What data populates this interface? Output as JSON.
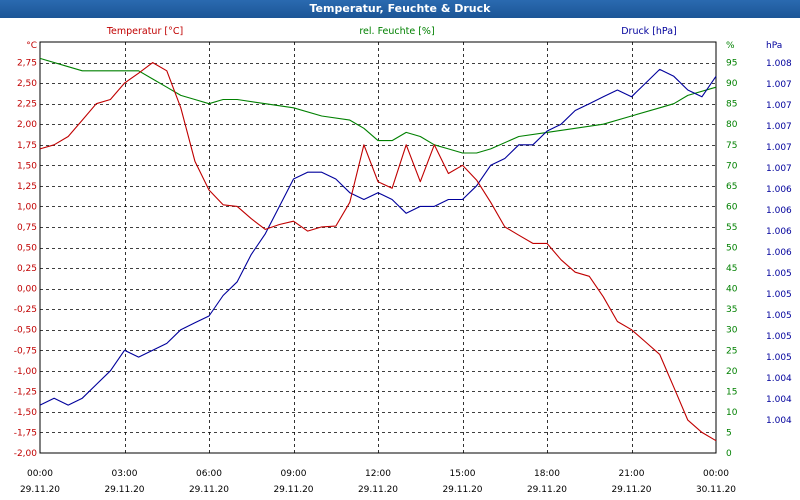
{
  "window": {
    "title": "Temperatur, Feuchte & Druck"
  },
  "chart_data": {
    "type": "line",
    "title": "Temperatur, Feuchte & Druck",
    "grid": true,
    "colors": {
      "temperature": "#c00000",
      "humidity": "#008000",
      "pressure": "#00009c"
    },
    "x_ticks": [
      {
        "time": "00:00",
        "date": "29.11.20"
      },
      {
        "time": "03:00",
        "date": "29.11.20"
      },
      {
        "time": "06:00",
        "date": "29.11.20"
      },
      {
        "time": "09:00",
        "date": "29.11.20"
      },
      {
        "time": "12:00",
        "date": "29.11.20"
      },
      {
        "time": "15:00",
        "date": "29.11.20"
      },
      {
        "time": "18:00",
        "date": "29.11.20"
      },
      {
        "time": "21:00",
        "date": "29.11.20"
      },
      {
        "time": "00:00",
        "date": "30.11.20"
      }
    ],
    "xlim": [
      "29.11.20 00:00",
      "30.11.20 00:00"
    ],
    "axes": {
      "temperature": {
        "label": "Temperatur [°C]",
        "unit": "°C",
        "ylim": [
          -2.0,
          3.0
        ],
        "ticks": [
          "2,75",
          "2,50",
          "2,25",
          "2,00",
          "1,75",
          "1,50",
          "1,25",
          "1,00",
          "0,75",
          "0,50",
          "0,25",
          "0,00",
          "-0,25",
          "-0,50",
          "-0,75",
          "-1,00",
          "-1,25",
          "-1,50",
          "-1,75",
          "-2,00"
        ]
      },
      "humidity": {
        "label": "rel. Feuchte [%]",
        "unit": "%",
        "ylim": [
          0,
          100
        ],
        "ticks": [
          "95",
          "90",
          "85",
          "80",
          "75",
          "70",
          "65",
          "60",
          "55",
          "50",
          "45",
          "40",
          "35",
          "30",
          "25",
          "20",
          "15",
          "10",
          "5",
          "0"
        ]
      },
      "pressure": {
        "label": "Druck [hPa]",
        "unit": "hPa",
        "ticks": [
          "1.008",
          "1.007",
          "1.007",
          "1.007",
          "1.007",
          "1.007",
          "1.006",
          "1.006",
          "1.006",
          "1.006",
          "1.005",
          "1.005",
          "1.005",
          "1.005",
          "1.005",
          "1.004",
          "1.004",
          "1.004"
        ]
      }
    },
    "series": [
      {
        "name": "Temperatur [°C]",
        "axis": "temperature",
        "x_hours": [
          0,
          0.5,
          1,
          1.5,
          2,
          2.5,
          3,
          3.5,
          4,
          4.5,
          5,
          5.5,
          6,
          6.5,
          7,
          7.5,
          8,
          8.5,
          9,
          9.5,
          10,
          10.5,
          11,
          11.5,
          12,
          12.5,
          13,
          13.5,
          14,
          14.5,
          15,
          15.5,
          16,
          16.5,
          17,
          17.5,
          18,
          18.5,
          19,
          19.5,
          20,
          20.5,
          21,
          21.5,
          22,
          22.5,
          23,
          23.5,
          24
        ],
        "values": [
          1.7,
          1.75,
          1.85,
          2.05,
          2.25,
          2.3,
          2.5,
          2.62,
          2.75,
          2.65,
          2.2,
          1.55,
          1.2,
          1.02,
          1.0,
          0.85,
          0.72,
          0.78,
          0.82,
          0.7,
          0.75,
          0.76,
          1.05,
          1.75,
          1.3,
          1.22,
          1.75,
          1.3,
          1.75,
          1.4,
          1.5,
          1.32,
          1.05,
          0.75,
          0.65,
          0.55,
          0.55,
          0.35,
          0.2,
          0.15,
          -0.1,
          -0.4,
          -0.5,
          -0.65,
          -0.8,
          -1.2,
          -1.6,
          -1.75,
          -1.85
        ]
      },
      {
        "name": "rel. Feuchte [%]",
        "axis": "humidity",
        "x_hours": [
          0,
          1,
          1.5,
          2,
          3,
          3.5,
          4,
          4.5,
          5,
          5.5,
          6,
          6.5,
          7,
          8,
          9,
          10,
          11,
          11.5,
          12,
          12.5,
          13,
          13.5,
          14,
          14.5,
          15,
          15.5,
          16,
          17,
          18,
          19,
          20,
          21,
          22,
          22.5,
          23,
          24
        ],
        "values": [
          96,
          94,
          93,
          93,
          93,
          93,
          91,
          89,
          87,
          86,
          85,
          86,
          86,
          85,
          84,
          82,
          81,
          79,
          76,
          76,
          78,
          77,
          75,
          74,
          73,
          73,
          74,
          77,
          78,
          79,
          80,
          82,
          84,
          85,
          87,
          89
        ]
      },
      {
        "name": "Druck [hPa]",
        "axis": "pressure",
        "x_hours": [
          0,
          0.5,
          1,
          1.5,
          2,
          2.5,
          3,
          3.5,
          4,
          4.5,
          5,
          5.5,
          6,
          6.5,
          7,
          7.5,
          8,
          8.5,
          9,
          9.5,
          10,
          10.5,
          11,
          11.5,
          12,
          12.5,
          13,
          13.5,
          14,
          14.5,
          15,
          15.5,
          16,
          16.5,
          17,
          17.5,
          18,
          18.5,
          19,
          19.5,
          20,
          20.5,
          21,
          21.5,
          22,
          22.5,
          23,
          23.5,
          24
        ],
        "values": [
          1.0042,
          1.0043,
          1.0042,
          1.0043,
          1.0045,
          1.0047,
          1.005,
          1.0049,
          1.005,
          1.0051,
          1.0053,
          1.0054,
          1.0055,
          1.0058,
          1.006,
          1.0064,
          1.0067,
          1.0071,
          1.0075,
          1.0076,
          1.0076,
          1.0075,
          1.0073,
          1.0072,
          1.0073,
          1.0072,
          1.007,
          1.0071,
          1.0071,
          1.0072,
          1.0072,
          1.0074,
          1.0077,
          1.0078,
          1.008,
          1.008,
          1.0082,
          1.0083,
          1.0085,
          1.0086,
          1.0087,
          1.0088,
          1.0087,
          1.0089,
          1.0091,
          1.009,
          1.0088,
          1.0087,
          1.009
        ]
      }
    ]
  }
}
